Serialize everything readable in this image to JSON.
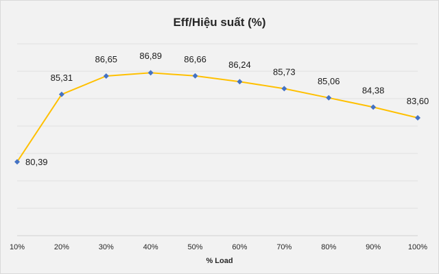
{
  "chart_data": {
    "type": "line",
    "title": "Eff/Hiệu suất (%)",
    "xlabel": "% Load",
    "ylabel": "",
    "categories": [
      "10%",
      "20%",
      "30%",
      "40%",
      "50%",
      "60%",
      "70%",
      "80%",
      "90%",
      "100%"
    ],
    "series": [
      {
        "values": [
          80.39,
          85.31,
          86.65,
          86.89,
          86.66,
          86.24,
          85.73,
          85.06,
          84.38,
          83.6
        ],
        "data_labels": [
          "80,39",
          "85,31",
          "86,65",
          "86,89",
          "86,66",
          "86,24",
          "85,73",
          "85,06",
          "84,38",
          "83,60"
        ],
        "line_color": "#ffc000",
        "marker_color": "#4472c4",
        "marker": "diamond"
      }
    ],
    "ylim": [
      75,
      89
    ],
    "y_axis_labels_visible": false,
    "grid": true,
    "legend": "none",
    "background_color": "#f2f2f2"
  }
}
